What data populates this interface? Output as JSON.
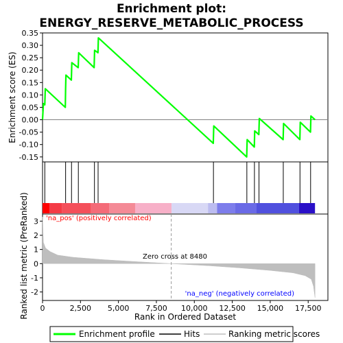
{
  "chart_data": {
    "type": "line",
    "title_line1": "Enrichment plot:",
    "title_line2": "ENERGY_RESERVE_METABOLIC_PROCESS",
    "top_panel": {
      "ylabel": "Enrichment score (ES)",
      "ylim": [
        -0.17,
        0.35
      ],
      "yticks": [
        -0.15,
        -0.1,
        -0.05,
        0.0,
        0.05,
        0.1,
        0.15,
        0.2,
        0.25,
        0.3,
        0.35
      ],
      "ytick_labels": [
        "-0.15",
        "-0.10",
        "-0.05",
        "0.00",
        "0.05",
        "0.10",
        "0.15",
        "0.20",
        "0.25",
        "0.30",
        "0.35"
      ],
      "series": [
        {
          "name": "Enrichment profile",
          "color": "#00ff00",
          "x": [
            0,
            60,
            150,
            180,
            1500,
            1520,
            1540,
            1900,
            1930,
            2350,
            2380,
            3400,
            3430,
            3650,
            3680,
            11250,
            11280,
            13450,
            13480,
            13950,
            13980,
            14250,
            14280,
            15850,
            15880,
            16950,
            16980,
            17650,
            17680,
            17950
          ],
          "y": [
            0.0,
            0.065,
            0.06,
            0.125,
            0.05,
            0.12,
            0.18,
            0.16,
            0.23,
            0.21,
            0.27,
            0.21,
            0.28,
            0.27,
            0.33,
            -0.095,
            -0.025,
            -0.15,
            -0.08,
            -0.11,
            -0.045,
            -0.06,
            0.005,
            -0.08,
            -0.015,
            -0.08,
            -0.01,
            -0.05,
            0.015,
            0.0
          ]
        }
      ]
    },
    "hits": {
      "name": "Hits",
      "x": [
        150,
        1520,
        1910,
        2360,
        3420,
        3660,
        11260,
        13460,
        13960,
        14260,
        15860,
        16960,
        17660
      ]
    },
    "heatmap_band": {
      "colors": [
        "#ff0000",
        "#f43b46",
        "#f44f5a",
        "#f46b78",
        "#f48a96",
        "#f7b0c8",
        "#d8d8f5",
        "#bcbcf0",
        "#7d7deb",
        "#6a6ae6",
        "#5050de",
        "#2a10c8"
      ],
      "boundaries": [
        0,
        450,
        1300,
        3200,
        4400,
        6100,
        8500,
        10900,
        11500,
        12700,
        14100,
        16900,
        17950
      ]
    },
    "bottom_panel": {
      "ylabel": "Ranked list metric (PreRanked)",
      "ylim": [
        -2.6,
        3.5
      ],
      "yticks": [
        -2,
        -1,
        0,
        1,
        2,
        3
      ],
      "ytick_labels": [
        "-2",
        "-1",
        "0",
        "1",
        "2",
        "3"
      ],
      "series": [
        {
          "name": "Ranking metric scores",
          "color": "#bebebe",
          "x": [
            0,
            60,
            200,
            500,
            1000,
            2000,
            4000,
            6000,
            8480,
            11000,
            13000,
            15000,
            16500,
            17300,
            17700,
            17850,
            17950
          ],
          "y": [
            3.3,
            1.5,
            1.1,
            0.85,
            0.6,
            0.45,
            0.28,
            0.15,
            0.0,
            -0.15,
            -0.3,
            -0.48,
            -0.65,
            -0.85,
            -1.1,
            -1.6,
            -2.4
          ]
        }
      ],
      "zero_cross_x": 8480,
      "zero_cross_label": "Zero cross at 8480",
      "pos_label": "'na_pos' (positively correlated)",
      "neg_label": "'na_neg' (negatively correlated)",
      "pos_color": "#ff0000",
      "neg_color": "#0000ff"
    },
    "xlabel": "Rank in Ordered Dataset",
    "xlim": [
      0,
      18800
    ],
    "xticks": [
      0,
      2500,
      5000,
      7500,
      10000,
      12500,
      15000,
      17500
    ],
    "xtick_labels": [
      "0",
      "2,500",
      "5,000",
      "7,500",
      "10,000",
      "12,500",
      "15,000",
      "17,500"
    ],
    "legend": {
      "placement": "bottom",
      "items": [
        {
          "label": "Enrichment profile",
          "color": "#00ff00",
          "kind": "line-thick"
        },
        {
          "label": "Hits",
          "color": "#000000",
          "kind": "line"
        },
        {
          "label": "Ranking metric scores",
          "color": "#bebebe",
          "kind": "line"
        }
      ]
    }
  }
}
